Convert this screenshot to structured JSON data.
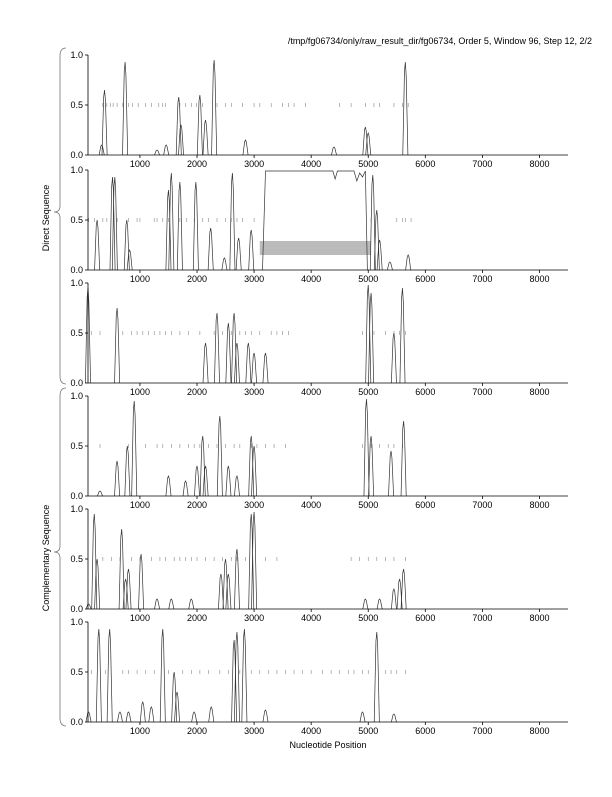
{
  "chart_data": {
    "type": "line",
    "title": "/tmp/fg06734/only/raw_result_dir/fg06734, Order 5, Window 96, Step 12, 2/2",
    "xlabel": "Nucleotide Position",
    "group_labels": [
      "Direct Sequence",
      "Complementary Sequence"
    ],
    "xlim": [
      90,
      8500
    ],
    "ylim": [
      0,
      1
    ],
    "x_ticks": [
      1000,
      2000,
      3000,
      4000,
      5000,
      6000,
      7000,
      8000
    ],
    "y_ticks": [
      "0.0",
      "0.5",
      "1.0"
    ],
    "grid": false,
    "colors": {
      "line": "#333333",
      "stop": "#888888",
      "box": "#bbbbbb"
    },
    "panels": [
      {
        "group": "Direct Sequence",
        "peaks": [
          [
            330,
            0.1
          ],
          [
            380,
            0.65
          ],
          [
            740,
            0.93
          ],
          [
            1300,
            0.05
          ],
          [
            1460,
            0.1
          ],
          [
            1680,
            0.58
          ],
          [
            1720,
            0.3
          ],
          [
            2050,
            0.6
          ],
          [
            2150,
            0.35
          ],
          [
            2300,
            0.95
          ],
          [
            2850,
            0.15
          ],
          [
            4400,
            0.08
          ],
          [
            4950,
            0.28
          ],
          [
            5000,
            0.22
          ],
          [
            5650,
            0.93
          ]
        ],
        "stops": [
          350,
          420,
          480,
          530,
          600,
          700,
          800,
          870,
          970,
          1100,
          1200,
          1330,
          1400,
          1450,
          1700,
          1800,
          1900,
          1990,
          2100,
          2350,
          2500,
          2600,
          2800,
          3000,
          3100,
          3300,
          3500,
          3600,
          3700,
          3900,
          4500,
          4700,
          4950,
          5100,
          5200,
          5450,
          5600,
          5700
        ]
      },
      {
        "group": "Direct Sequence",
        "peaks": [
          [
            250,
            0.5
          ],
          [
            520,
            0.93
          ],
          [
            560,
            0.93
          ],
          [
            770,
            0.5
          ],
          [
            820,
            0.2
          ],
          [
            1500,
            0.8
          ],
          [
            1550,
            0.97
          ],
          [
            1700,
            0.88
          ],
          [
            1980,
            0.88
          ],
          [
            2240,
            0.42
          ],
          [
            2480,
            0.12
          ],
          [
            2620,
            0.97
          ],
          [
            2730,
            0.32
          ],
          [
            2950,
            0.4
          ],
          [
            5080,
            0.95
          ],
          [
            5150,
            0.6
          ],
          [
            5200,
            0.3
          ],
          [
            5380,
            0.08
          ],
          [
            5700,
            0.15
          ]
        ],
        "plateau": {
          "start": 3200,
          "end": 4950,
          "value": 0.99
        },
        "region": {
          "start": 3100,
          "end": 5050,
          "ymin": 0.15,
          "ymax": 0.29
        },
        "stops": [
          100,
          200,
          350,
          420,
          600,
          800,
          950,
          1000,
          1250,
          1300,
          1400,
          1500,
          1700,
          1820,
          1950,
          2100,
          2200,
          2350,
          2500,
          2600,
          2700,
          2800,
          3000,
          5050,
          5500,
          5600,
          5650,
          5750
        ]
      },
      {
        "group": "Direct Sequence",
        "peaks": [
          [
            90,
            0.95
          ],
          [
            600,
            0.75
          ],
          [
            2150,
            0.4
          ],
          [
            2350,
            0.7
          ],
          [
            2550,
            0.6
          ],
          [
            2650,
            0.7
          ],
          [
            2700,
            0.4
          ],
          [
            2900,
            0.4
          ],
          [
            3000,
            0.3
          ],
          [
            3200,
            0.3
          ],
          [
            5000,
            0.98
          ],
          [
            5050,
            0.9
          ],
          [
            5450,
            0.5
          ],
          [
            5600,
            0.95
          ]
        ],
        "stops": [
          150,
          300,
          700,
          850,
          950,
          1050,
          1150,
          1250,
          1350,
          1450,
          1550,
          1700,
          1850,
          2050,
          2300,
          2450,
          2600,
          2750,
          2850,
          2950,
          3100,
          3300,
          3400,
          3500,
          3600,
          4900,
          5100,
          5300,
          5450,
          5550,
          5650
        ]
      },
      {
        "group": "Complementary Sequence",
        "peaks": [
          [
            300,
            0.05
          ],
          [
            600,
            0.35
          ],
          [
            780,
            0.5
          ],
          [
            900,
            0.95
          ],
          [
            1500,
            0.2
          ],
          [
            1800,
            0.15
          ],
          [
            2000,
            0.3
          ],
          [
            2100,
            0.6
          ],
          [
            2150,
            0.3
          ],
          [
            2400,
            0.8
          ],
          [
            2550,
            0.3
          ],
          [
            2700,
            0.2
          ],
          [
            2950,
            0.6
          ],
          [
            3000,
            0.5
          ],
          [
            4970,
            0.97
          ],
          [
            5050,
            0.6
          ],
          [
            5400,
            0.45
          ],
          [
            5620,
            0.75
          ]
        ],
        "stops": [
          300,
          800,
          1100,
          1300,
          1400,
          1550,
          1700,
          1850,
          1950,
          2050,
          2200,
          2350,
          2500,
          2650,
          2750,
          2950,
          3050,
          3200,
          3350,
          3550,
          4900,
          5050,
          5200,
          5350,
          5450,
          5600
        ]
      },
      {
        "group": "Complementary Sequence",
        "peaks": [
          [
            100,
            0.05
          ],
          [
            200,
            0.95
          ],
          [
            250,
            0.5
          ],
          [
            680,
            0.8
          ],
          [
            750,
            0.3
          ],
          [
            800,
            0.4
          ],
          [
            1020,
            0.55
          ],
          [
            1300,
            0.1
          ],
          [
            1550,
            0.1
          ],
          [
            1900,
            0.1
          ],
          [
            2420,
            0.35
          ],
          [
            2500,
            0.5
          ],
          [
            2550,
            0.35
          ],
          [
            2700,
            0.6
          ],
          [
            2950,
            0.95
          ],
          [
            3000,
            0.97
          ],
          [
            4950,
            0.1
          ],
          [
            5200,
            0.1
          ],
          [
            5450,
            0.2
          ],
          [
            5550,
            0.3
          ],
          [
            5620,
            0.4
          ]
        ],
        "stops": [
          350,
          500,
          650,
          850,
          1000,
          1200,
          1350,
          1450,
          1600,
          1700,
          1800,
          1900,
          2000,
          2150,
          2300,
          2450,
          2600,
          2700,
          2850,
          3200,
          3400,
          4700,
          4850,
          5000,
          5150,
          5300,
          5450,
          5650
        ]
      },
      {
        "group": "Complementary Sequence",
        "peaks": [
          [
            100,
            0.1
          ],
          [
            280,
            0.93
          ],
          [
            470,
            0.93
          ],
          [
            650,
            0.1
          ],
          [
            800,
            0.1
          ],
          [
            1050,
            0.2
          ],
          [
            1200,
            0.15
          ],
          [
            1400,
            0.93
          ],
          [
            1600,
            0.5
          ],
          [
            1650,
            0.3
          ],
          [
            1950,
            0.1
          ],
          [
            2250,
            0.15
          ],
          [
            2650,
            0.82
          ],
          [
            2700,
            0.9
          ],
          [
            2830,
            0.93
          ],
          [
            3200,
            0.12
          ],
          [
            4900,
            0.1
          ],
          [
            5150,
            0.9
          ],
          [
            5450,
            0.08
          ]
        ],
        "stops": [
          150,
          400,
          700,
          800,
          950,
          1100,
          1250,
          1500,
          1750,
          1900,
          2050,
          2200,
          2400,
          2550,
          2750,
          2950,
          3100,
          3250,
          3400,
          3550,
          3700,
          3850,
          4000,
          4200,
          4350,
          4500,
          4650,
          4750,
          4900,
          5000,
          5300,
          5400,
          5500,
          5650
        ]
      }
    ]
  }
}
